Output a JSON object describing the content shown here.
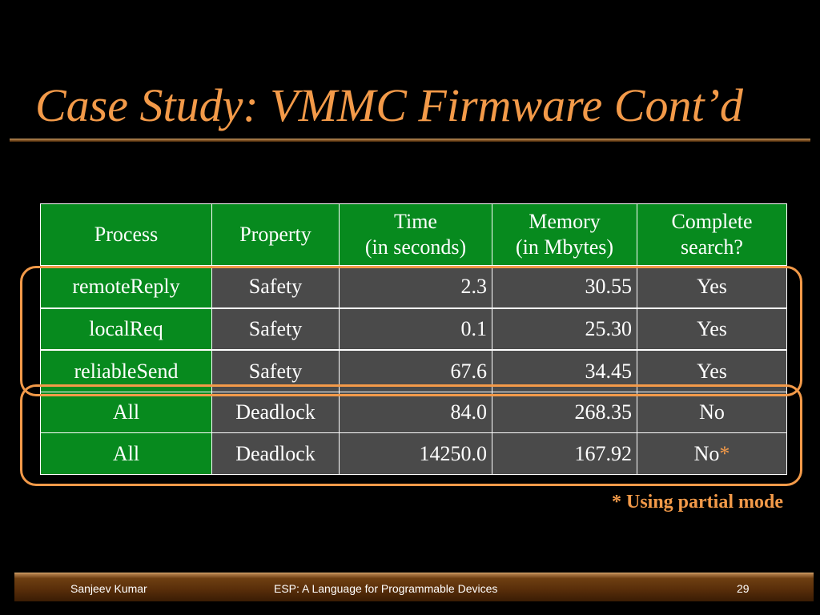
{
  "slide": {
    "title": "Case Study: VMMC Firmware Cont’d"
  },
  "table": {
    "headers": [
      {
        "line1": "Process",
        "line2": ""
      },
      {
        "line1": "Property",
        "line2": ""
      },
      {
        "line1": "Time",
        "line2": "(in seconds)"
      },
      {
        "line1": "Memory",
        "line2": "(in Mbytes)"
      },
      {
        "line1": "Complete",
        "line2": "search?"
      }
    ],
    "rows": [
      {
        "process": "remoteReply",
        "property": "Safety",
        "time": "2.3",
        "memory": "30.55",
        "complete": "Yes",
        "mark": ""
      },
      {
        "process": "localReq",
        "property": "Safety",
        "time": "0.1",
        "memory": "25.30",
        "complete": "Yes",
        "mark": ""
      },
      {
        "process": "reliableSend",
        "property": "Safety",
        "time": "67.6",
        "memory": "34.45",
        "complete": "Yes",
        "mark": ""
      },
      {
        "process": "All",
        "property": "Deadlock",
        "time": "84.0",
        "memory": "268.35",
        "complete": "No",
        "mark": ""
      },
      {
        "process": "All",
        "property": "Deadlock",
        "time": "14250.0",
        "memory": "167.92",
        "complete": "No",
        "mark": "*"
      }
    ]
  },
  "footnote": "* Using partial mode",
  "footer": {
    "author": "Sanjeev Kumar",
    "course": "ESP: A Language for Programmable Devices",
    "page": "29"
  },
  "colors": {
    "accent": "#F39A49",
    "header_green": "#078A1E",
    "cell_gray": "#4a4a4a",
    "background": "#000000"
  }
}
